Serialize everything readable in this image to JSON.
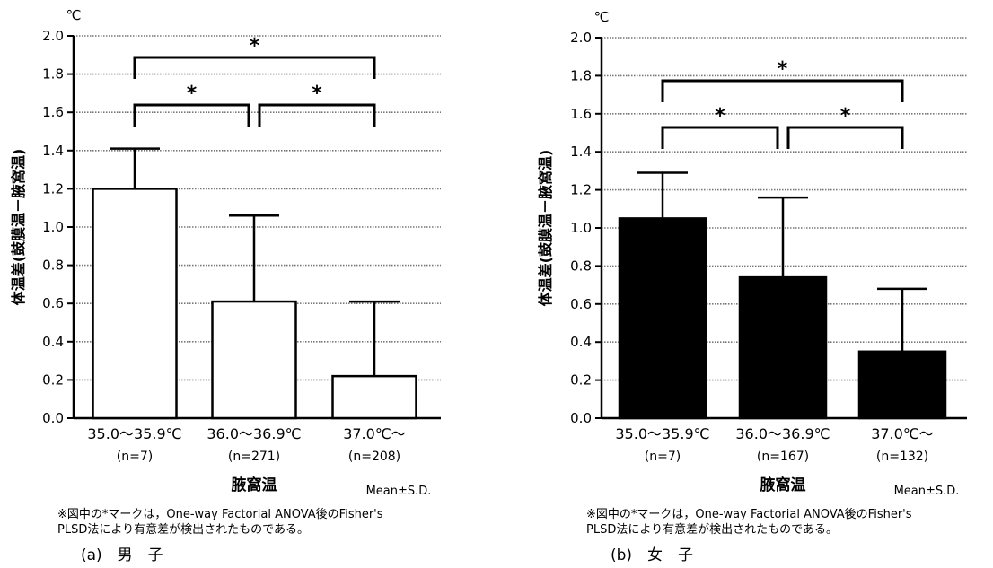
{
  "chart_data": [
    {
      "type": "bar",
      "y_unit": "℃",
      "ylabel": "体温差(鼓膜温－腋窩温)",
      "xlabel": "腋窩温",
      "ylim": [
        0,
        2.0
      ],
      "yticks": [
        "0.0",
        "0.2",
        "0.4",
        "0.6",
        "0.8",
        "1.0",
        "1.2",
        "1.4",
        "1.6",
        "1.8",
        "2.0"
      ],
      "grid": "horizontal dotted",
      "bar_color": "#ffffff",
      "categories": [
        "35.0～35.9℃",
        "36.0～36.9℃",
        "37.0℃～"
      ],
      "n_labels": [
        "(n=7)",
        "(n=271)",
        "(n=208)"
      ],
      "values": [
        1.2,
        0.61,
        0.22
      ],
      "error_upper": [
        1.41,
        1.06,
        0.61
      ],
      "significance": [
        {
          "from": 0,
          "to": 2,
          "label": "*"
        },
        {
          "from": 0,
          "to": 1,
          "label": "*"
        },
        {
          "from": 1,
          "to": 2,
          "label": "*"
        }
      ],
      "stats_note": "Mean±S.D.",
      "footnote_1": "※図中の*マークは，One-way Factorial ANOVA後のFisher's",
      "footnote_2": "PLSD法により有意差が検出されたものである。",
      "caption": "(a)　男　子"
    },
    {
      "type": "bar",
      "y_unit": "℃",
      "ylabel": "体温差(鼓膜温－腋窩温)",
      "xlabel": "腋窩温",
      "ylim": [
        0,
        2.0
      ],
      "yticks": [
        "0.0",
        "0.2",
        "0.4",
        "0.6",
        "0.8",
        "1.0",
        "1.2",
        "1.4",
        "1.6",
        "1.8",
        "2.0"
      ],
      "grid": "horizontal dotted",
      "bar_color": "#000000",
      "categories": [
        "35.0～35.9℃",
        "36.0～36.9℃",
        "37.0℃～"
      ],
      "n_labels": [
        "(n=7)",
        "(n=167)",
        "(n=132)"
      ],
      "values": [
        1.05,
        0.74,
        0.35
      ],
      "error_upper": [
        1.29,
        1.16,
        0.68
      ],
      "significance": [
        {
          "from": 0,
          "to": 2,
          "label": "*"
        },
        {
          "from": 0,
          "to": 1,
          "label": "*"
        },
        {
          "from": 1,
          "to": 2,
          "label": "*"
        }
      ],
      "stats_note": "Mean±S.D.",
      "footnote_1": "※図中の*マークは，One-way Factorial ANOVA後のFisher's",
      "footnote_2": "PLSD法により有意差が検出されたものである。",
      "caption": "(b)　女　子"
    }
  ]
}
